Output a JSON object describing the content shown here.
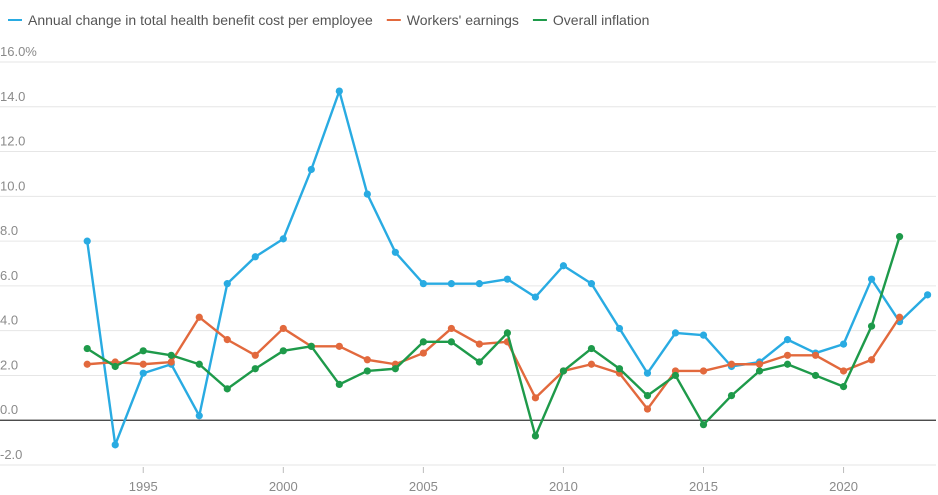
{
  "chart_data": {
    "type": "line",
    "title": "",
    "xlabel": "",
    "ylabel": "",
    "xlim": [
      1992.1,
      2023.3
    ],
    "ylim": [
      -2,
      16
    ],
    "y_ticks": [
      -2,
      0,
      2,
      4,
      6,
      8,
      10,
      12,
      14,
      16
    ],
    "y_tick_labels": [
      "-2.0",
      "0.0",
      "2.0",
      "4.0",
      "6.0",
      "8.0",
      "10.0",
      "12.0",
      "14.0",
      "16.0%"
    ],
    "x_ticks": [
      1995,
      2000,
      2005,
      2010,
      2015,
      2020
    ],
    "x_tick_labels": [
      "1995",
      "2000",
      "2005",
      "2010",
      "2015",
      "2020"
    ],
    "grid": true,
    "zero_line": true,
    "legend_position": "top-left",
    "series": [
      {
        "name": "Annual change in total health benefit cost per employee",
        "color": "#29abe2",
        "x": [
          1993,
          1994,
          1995,
          1996,
          1997,
          1998,
          1999,
          2000,
          2001,
          2002,
          2003,
          2004,
          2005,
          2006,
          2007,
          2008,
          2009,
          2010,
          2011,
          2012,
          2013,
          2014,
          2015,
          2016,
          2017,
          2018,
          2019,
          2020,
          2021,
          2022,
          2023
        ],
        "values": [
          8.0,
          -1.1,
          2.1,
          2.5,
          0.2,
          6.1,
          7.3,
          8.1,
          11.2,
          14.7,
          10.1,
          7.5,
          6.1,
          6.1,
          6.1,
          6.3,
          5.5,
          6.9,
          6.1,
          4.1,
          2.1,
          3.9,
          3.8,
          2.4,
          2.6,
          3.6,
          3.0,
          3.4,
          6.3,
          4.4,
          5.6
        ]
      },
      {
        "name": "Workers' earnings",
        "color": "#e2693d",
        "x": [
          1993,
          1994,
          1995,
          1996,
          1997,
          1998,
          1999,
          2000,
          2001,
          2002,
          2003,
          2004,
          2005,
          2006,
          2007,
          2008,
          2009,
          2010,
          2011,
          2012,
          2013,
          2014,
          2015,
          2016,
          2017,
          2018,
          2019,
          2020,
          2021,
          2022
        ],
        "values": [
          2.5,
          2.6,
          2.5,
          2.6,
          4.6,
          3.6,
          2.9,
          4.1,
          3.3,
          3.3,
          2.7,
          2.5,
          3.0,
          4.1,
          3.4,
          3.5,
          1.0,
          2.2,
          2.5,
          2.1,
          0.5,
          2.2,
          2.2,
          2.5,
          2.5,
          2.9,
          2.9,
          2.2,
          2.7,
          4.6
        ]
      },
      {
        "name": "Overall inflation",
        "color": "#1e9a4a",
        "x": [
          1993,
          1994,
          1995,
          1996,
          1997,
          1998,
          1999,
          2000,
          2001,
          2002,
          2003,
          2004,
          2005,
          2006,
          2007,
          2008,
          2009,
          2010,
          2011,
          2012,
          2013,
          2014,
          2015,
          2016,
          2017,
          2018,
          2019,
          2020,
          2021,
          2022
        ],
        "values": [
          3.2,
          2.4,
          3.1,
          2.9,
          2.5,
          1.4,
          2.3,
          3.1,
          3.3,
          1.6,
          2.2,
          2.3,
          3.5,
          3.5,
          2.6,
          3.9,
          -0.7,
          2.2,
          3.2,
          2.3,
          1.1,
          2.0,
          -0.2,
          1.1,
          2.2,
          2.5,
          2.0,
          1.5,
          4.2,
          8.2
        ]
      }
    ]
  }
}
